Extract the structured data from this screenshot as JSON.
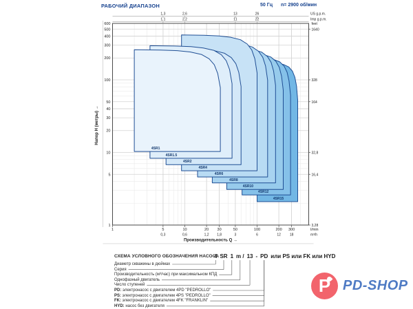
{
  "header": {
    "title": "РАБОЧИЙ ДИАПАЗОН",
    "frequency": "50 Гц",
    "speed": "n= 2900 об/мин"
  },
  "colors": {
    "accent_blue": "#15418e",
    "band_stroke": "#1f4e94",
    "band_fills": [
      "#e9f3fc",
      "#dfeefa",
      "#d4e8f8",
      "#c7e2f6",
      "#b8dbf3",
      "#a8d3f0",
      "#97cbec",
      "#85c1e9",
      "#72b7e5"
    ],
    "grid_minor": "#e9e9e9",
    "grid_major": "#d2d2d2",
    "box_border": "#4a4a4a",
    "axis_text": "#222222",
    "logo_red": "#f2646c",
    "logo_blue": "#4f7bc4"
  },
  "chart_data": {
    "type": "area",
    "title": "Рабочий диапазон 4SR (50 Гц, n= 2900 об/мин)",
    "scale": "log-log",
    "x_axis": {
      "label": "Производительность Q  →",
      "unit_lmin": "l/min",
      "unit_m3h": "m³/h",
      "range_lmin": [
        1,
        500
      ],
      "ticks_lmin": [
        {
          "lmin": 1,
          "label": "1"
        },
        {
          "lmin": 5,
          "label": "5"
        },
        {
          "lmin": 10,
          "label": "10"
        },
        {
          "lmin": 20,
          "label": "20"
        },
        {
          "lmin": 30,
          "label": "30"
        },
        {
          "lmin": 50,
          "label": "50"
        },
        {
          "lmin": 100,
          "label": "100"
        },
        {
          "lmin": 200,
          "label": "200"
        },
        {
          "lmin": 300,
          "label": "300"
        }
      ],
      "ticks_m3h": [
        {
          "lmin": 5,
          "label": "0,3"
        },
        {
          "lmin": 10,
          "label": "0,6"
        },
        {
          "lmin": 20,
          "label": "1,2"
        },
        {
          "lmin": 30,
          "label": "1,8"
        },
        {
          "lmin": 50,
          "label": "3"
        },
        {
          "lmin": 100,
          "label": "6"
        },
        {
          "lmin": 200,
          "label": "12"
        },
        {
          "lmin": 300,
          "label": "18"
        }
      ]
    },
    "top_axis": {
      "us_label": "US g.p.m.",
      "imp_label": "Imp g.p.m.",
      "us_ticks": [
        {
          "lmin": 5,
          "label": "1,3"
        },
        {
          "lmin": 10,
          "label": "2,6"
        },
        {
          "lmin": 50,
          "label": "13"
        },
        {
          "lmin": 100,
          "label": "26"
        }
      ],
      "imp_ticks": [
        {
          "lmin": 5,
          "label": "1,1"
        },
        {
          "lmin": 10,
          "label": "2,2"
        },
        {
          "lmin": 50,
          "label": "11"
        },
        {
          "lmin": 100,
          "label": "22"
        }
      ]
    },
    "y_axis": {
      "label": "Напор H (метры)  →",
      "unit": "m",
      "range_m": [
        1,
        600
      ],
      "ticks_m": [
        {
          "m": 600,
          "label": "600"
        },
        {
          "m": 500,
          "label": "500"
        },
        {
          "m": 400,
          "label": "400"
        },
        {
          "m": 300,
          "label": "300"
        },
        {
          "m": 200,
          "label": "200"
        },
        {
          "m": 100,
          "label": "100"
        },
        {
          "m": 50,
          "label": "50"
        },
        {
          "m": 40,
          "label": "40"
        },
        {
          "m": 30,
          "label": "30"
        },
        {
          "m": 20,
          "label": "20"
        },
        {
          "m": 10,
          "label": "10"
        },
        {
          "m": 5,
          "label": "5"
        },
        {
          "m": 1,
          "label": "1"
        }
      ]
    },
    "right_axis": {
      "label": "feet",
      "ticks": [
        {
          "m": 500,
          "label": "1640"
        },
        {
          "m": 100,
          "label": "328"
        },
        {
          "m": 50,
          "label": "164"
        },
        {
          "m": 10,
          "label": "32,8"
        },
        {
          "m": 5,
          "label": "16,4"
        },
        {
          "m": 1,
          "label": "3,28"
        }
      ]
    },
    "series": [
      {
        "name": "4SR1",
        "q_min_lmin": 2.0,
        "q_max_lmin": 31,
        "h_min_m": 10.3,
        "h_max_m": 260
      },
      {
        "name": "4SR1.5",
        "q_min_lmin": 3.3,
        "q_max_lmin": 45,
        "h_min_m": 8.3,
        "h_max_m": 295
      },
      {
        "name": "4SR2",
        "q_min_lmin": 5.5,
        "q_max_lmin": 60,
        "h_min_m": 6.8,
        "h_max_m": 270
      },
      {
        "name": "4SR4",
        "q_min_lmin": 9.0,
        "q_max_lmin": 100,
        "h_min_m": 5.6,
        "h_max_m": 415
      },
      {
        "name": "4SR6",
        "q_min_lmin": 15,
        "q_max_lmin": 140,
        "h_min_m": 4.6,
        "h_max_m": 330
      },
      {
        "name": "4SR8",
        "q_min_lmin": 24,
        "q_max_lmin": 180,
        "h_min_m": 3.8,
        "h_max_m": 280
      },
      {
        "name": "4SR10",
        "q_min_lmin": 38,
        "q_max_lmin": 230,
        "h_min_m": 3.1,
        "h_max_m": 240
      },
      {
        "name": "4SR12",
        "q_min_lmin": 62,
        "q_max_lmin": 290,
        "h_min_m": 2.6,
        "h_max_m": 205
      },
      {
        "name": "4SR15",
        "q_min_lmin": 100,
        "q_max_lmin": 365,
        "h_min_m": 2.1,
        "h_max_m": 175
      }
    ]
  },
  "designation": {
    "title": "СХЕМА УСЛОВНОГО ОБОЗНАЧЕНИЯ НАСОСА",
    "code_tokens": [
      {
        "text": "4",
        "id": "dia"
      },
      {
        "text": "SR",
        "id": "series"
      },
      {
        "text": "1",
        "id": "flow"
      },
      {
        "text": "m /",
        "id": "motor"
      },
      {
        "text": "13",
        "id": "stages"
      },
      {
        "text": "-",
        "id": ""
      },
      {
        "text": "PD",
        "id": "pd"
      },
      {
        "text": "или PS или FK или HYD",
        "id": ""
      }
    ],
    "rows": [
      {
        "prefix": "",
        "label": "Диаметр скважины в дюймах",
        "connect": "dia"
      },
      {
        "prefix": "",
        "label": "Серия",
        "connect": "series"
      },
      {
        "prefix": "",
        "label": "Производительность (м³/час) при максимальном КПД",
        "connect": "flow"
      },
      {
        "prefix": "",
        "label": "Однофазный двигатель",
        "connect": "motor"
      },
      {
        "prefix": "",
        "label": "Число ступеней",
        "connect": "stages"
      },
      {
        "prefix": "PD:",
        "label": " электронасос с двигателем 4PD \"PEDROLLO\"",
        "connect": "pd"
      },
      {
        "prefix": "PS:",
        "label": " электронасос с двигателем 4PS \"PEDROLLO\"",
        "connect": "pd"
      },
      {
        "prefix": "FK:",
        "label": " электронасос с двигателем 4FK \"FRANKLIN\"",
        "connect": "pd"
      },
      {
        "prefix": "HYD:",
        "label": " насос без двигателя",
        "connect": "pd"
      }
    ]
  },
  "logo": {
    "text": "PD-SHOP",
    "letter": "P"
  }
}
